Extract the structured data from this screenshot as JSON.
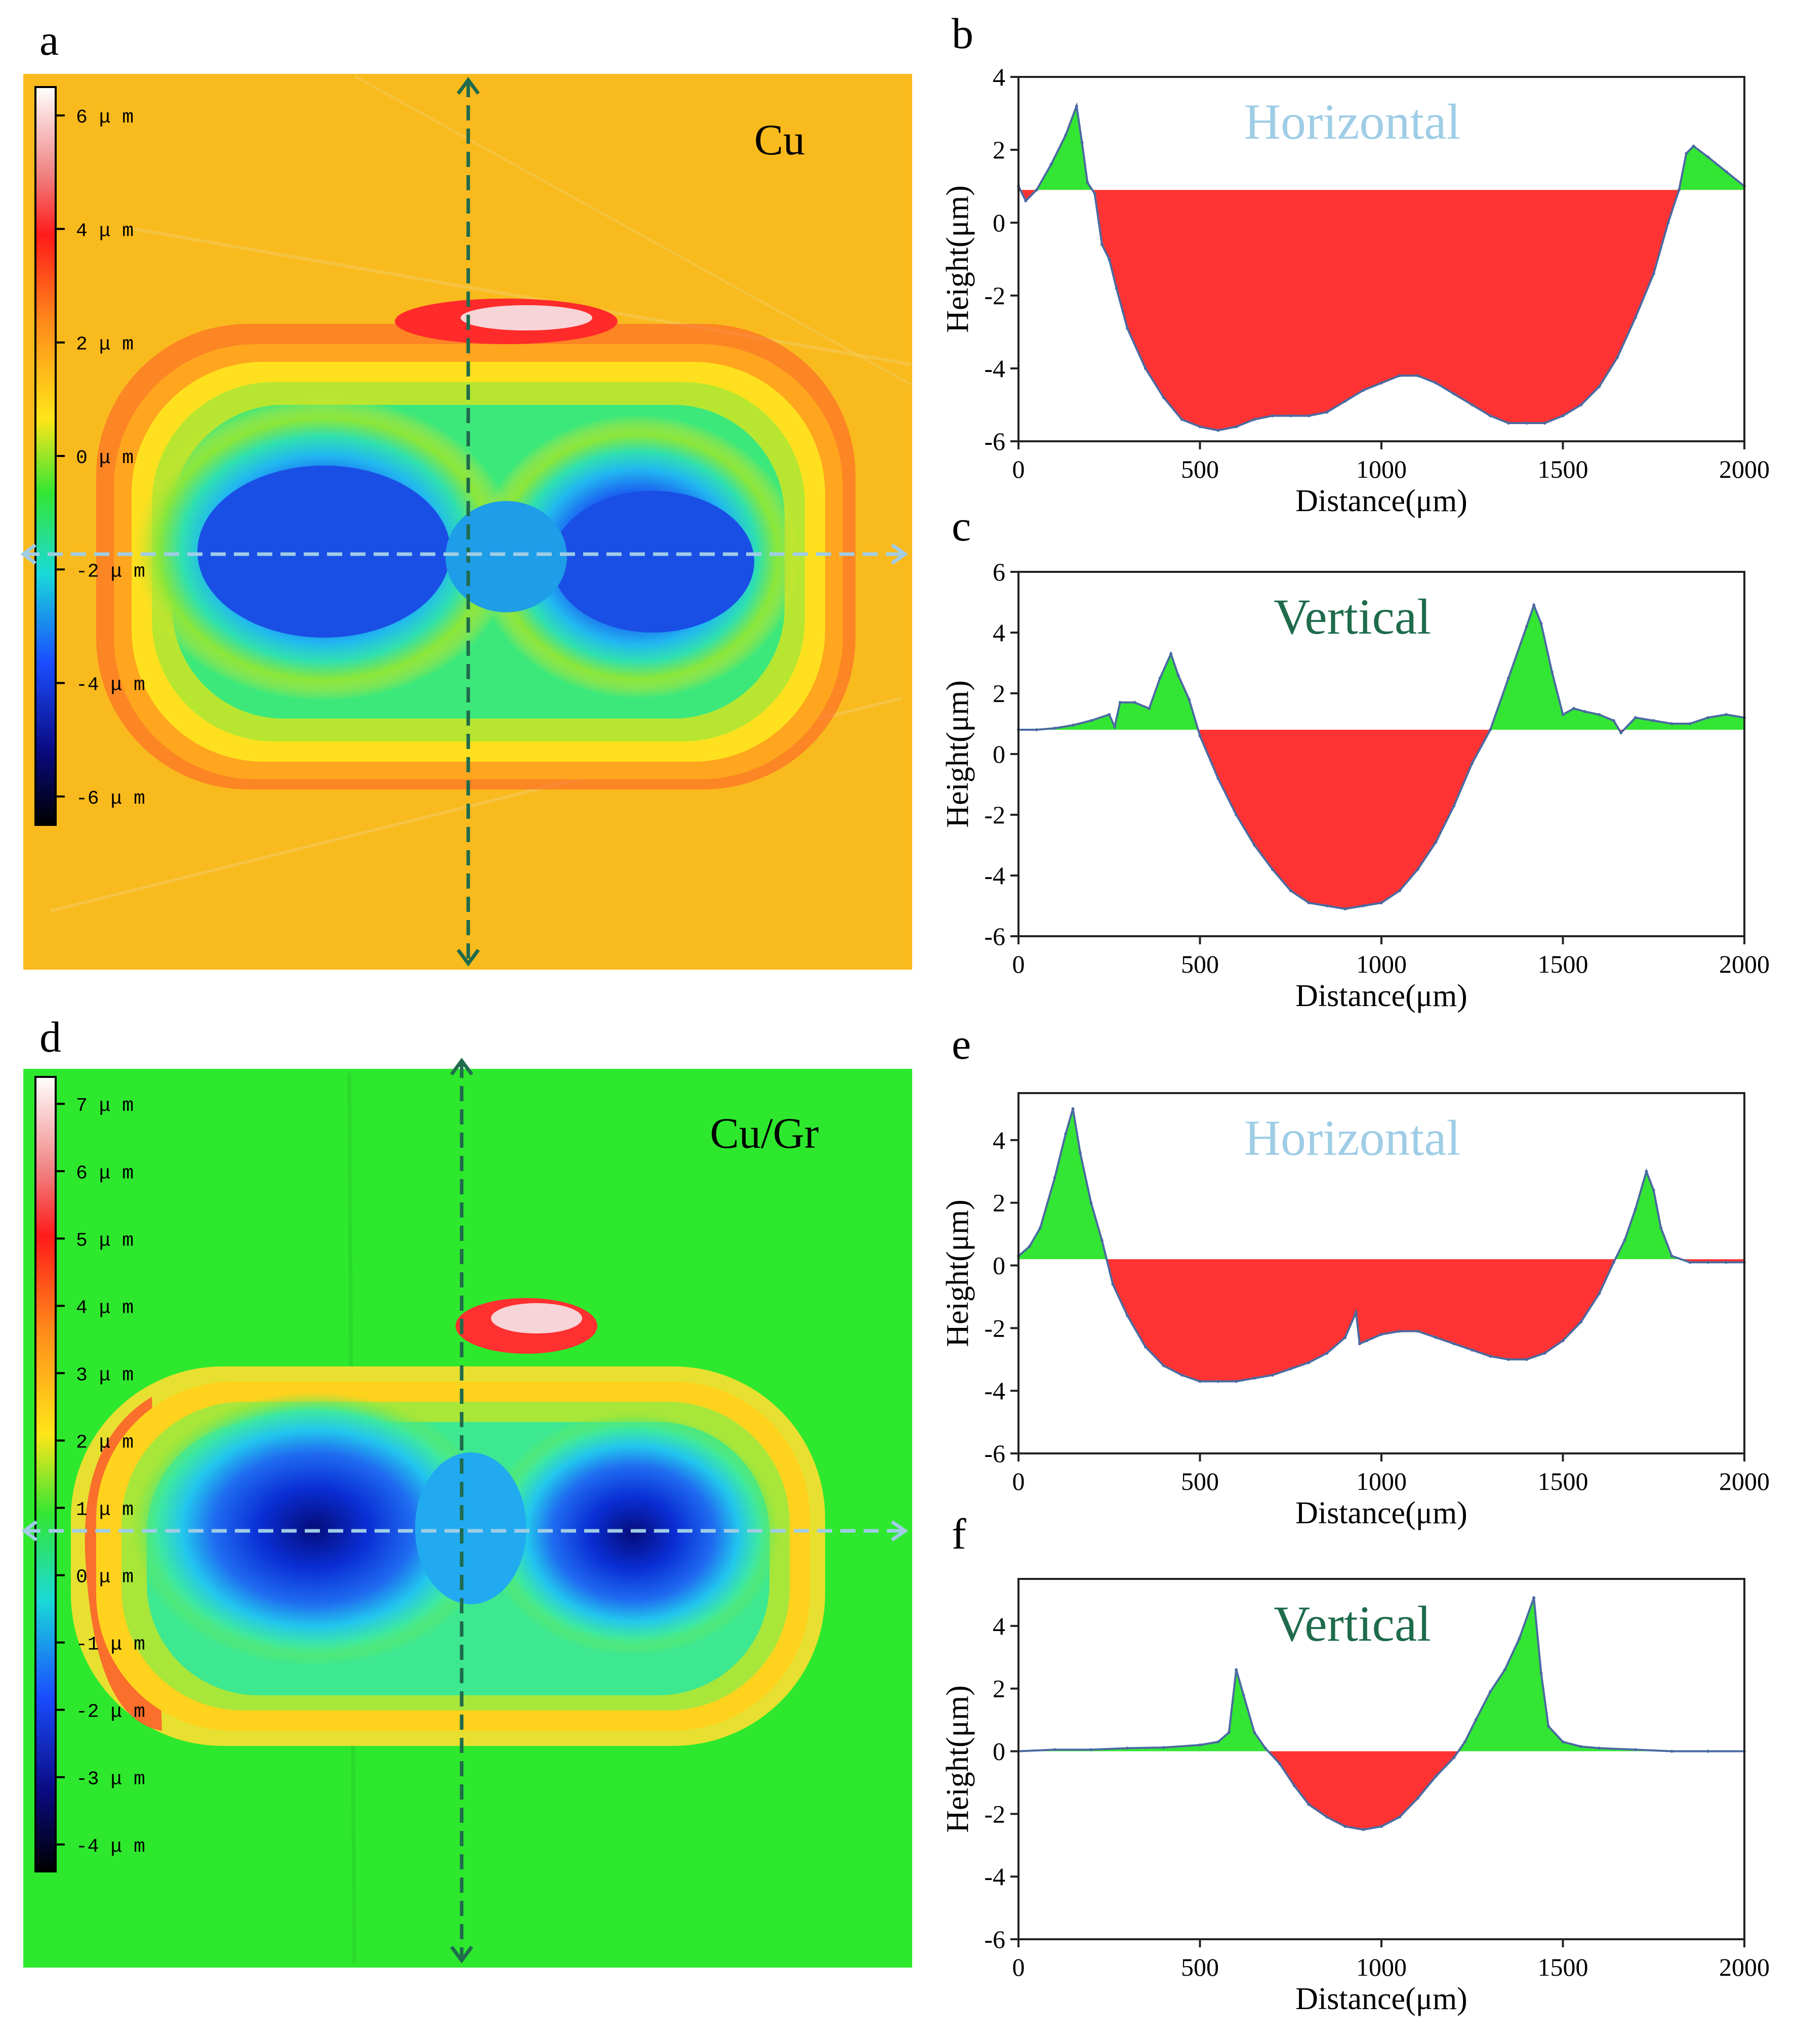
{
  "panel_labels": {
    "a": "a",
    "b": "b",
    "c": "c",
    "d": "d",
    "e": "e",
    "f": "f"
  },
  "maps": [
    {
      "id": "a",
      "material": "Cu",
      "colorbar_ticks": [
        "6 μ m",
        "4 μ m",
        "2 μ m",
        "0 μ m",
        "-2 μ m",
        "-4 μ m",
        "-6 μ m"
      ],
      "colorbar_range": [
        -6.5,
        6.5
      ],
      "background_color": "#f9ba1e"
    },
    {
      "id": "d",
      "material": "Cu/Gr",
      "colorbar_ticks": [
        "7 μ m",
        "6 μ m",
        "5 μ m",
        "4 μ m",
        "3 μ m",
        "2 μ m",
        "1 μ m",
        "0 μ m",
        "-1 μ m",
        "-2 μ m",
        "-3 μ m",
        "-4 μ m"
      ],
      "colorbar_range": [
        -4.4,
        7.4
      ],
      "background_color": "#2ee82e"
    }
  ],
  "colors": {
    "above_fill": "#33e633",
    "below_fill": "#ff3333",
    "profile_line": "#4a6aa0",
    "horizontal_line": "#9fcde6",
    "vertical_line": "#1f6b4c"
  },
  "chart_data": [
    {
      "id": "b",
      "type": "area",
      "title": "Horizontal",
      "xlabel": "Distance(μm)",
      "ylabel": "Height(μm)",
      "xlim": [
        0,
        2000
      ],
      "ylim": [
        -6,
        4
      ],
      "xticks": [
        "0",
        "500",
        "1000",
        "1500",
        "2000"
      ],
      "yticks": [
        "4",
        "2",
        "0",
        "-2",
        "-4",
        "-6"
      ],
      "baseline": 0.9,
      "series": [
        {
          "name": "profile",
          "x": [
            0,
            20,
            50,
            90,
            130,
            160,
            175,
            190,
            210,
            230,
            250,
            270,
            300,
            350,
            400,
            450,
            500,
            550,
            600,
            650,
            700,
            750,
            800,
            850,
            900,
            950,
            1000,
            1050,
            1100,
            1150,
            1200,
            1250,
            1300,
            1350,
            1400,
            1450,
            1500,
            1550,
            1600,
            1650,
            1700,
            1750,
            1790,
            1820,
            1840,
            1860,
            1900,
            1950,
            2000
          ],
          "y": [
            1.0,
            0.6,
            0.9,
            1.6,
            2.4,
            3.2,
            2.2,
            1.1,
            0.8,
            -0.6,
            -1.0,
            -1.8,
            -2.9,
            -4.0,
            -4.8,
            -5.4,
            -5.6,
            -5.7,
            -5.6,
            -5.4,
            -5.3,
            -5.3,
            -5.3,
            -5.2,
            -4.9,
            -4.6,
            -4.4,
            -4.2,
            -4.2,
            -4.4,
            -4.7,
            -5.0,
            -5.3,
            -5.5,
            -5.5,
            -5.5,
            -5.3,
            -5.0,
            -4.5,
            -3.7,
            -2.6,
            -1.4,
            0.0,
            0.9,
            1.9,
            2.1,
            1.8,
            1.4,
            1.0
          ]
        }
      ]
    },
    {
      "id": "c",
      "type": "area",
      "title": "Vertical",
      "xlabel": "Distance(μm)",
      "ylabel": "Height(μm)",
      "xlim": [
        0,
        2000
      ],
      "ylim": [
        -6,
        6
      ],
      "xticks": [
        "0",
        "500",
        "1000",
        "1500",
        "2000"
      ],
      "yticks": [
        "6",
        "4",
        "2",
        "0",
        "-2",
        "-4",
        "-6"
      ],
      "baseline": 0.8,
      "series": [
        {
          "name": "profile",
          "x": [
            0,
            50,
            100,
            150,
            200,
            250,
            265,
            280,
            320,
            360,
            390,
            420,
            440,
            470,
            500,
            550,
            600,
            650,
            700,
            750,
            800,
            850,
            900,
            950,
            1000,
            1050,
            1100,
            1150,
            1200,
            1250,
            1300,
            1350,
            1400,
            1420,
            1440,
            1470,
            1500,
            1530,
            1560,
            1600,
            1640,
            1660,
            1700,
            1750,
            1800,
            1850,
            1900,
            1950,
            2000
          ],
          "y": [
            0.8,
            0.8,
            0.85,
            0.95,
            1.1,
            1.3,
            0.9,
            1.7,
            1.7,
            1.5,
            2.5,
            3.3,
            2.6,
            1.8,
            0.6,
            -0.8,
            -2.0,
            -3.0,
            -3.8,
            -4.5,
            -4.9,
            -5.0,
            -5.1,
            -5.0,
            -4.9,
            -4.5,
            -3.8,
            -2.9,
            -1.7,
            -0.3,
            0.8,
            2.5,
            4.2,
            4.9,
            4.3,
            2.7,
            1.3,
            1.5,
            1.4,
            1.3,
            1.1,
            0.7,
            1.2,
            1.1,
            1.0,
            1.0,
            1.2,
            1.3,
            1.2
          ]
        }
      ]
    },
    {
      "id": "e",
      "type": "area",
      "title": "Horizontal",
      "xlabel": "Distance(μm)",
      "ylabel": "Height(μm)",
      "xlim": [
        0,
        2000
      ],
      "ylim": [
        -6,
        5.5
      ],
      "xticks": [
        "0",
        "500",
        "1000",
        "1500",
        "2000"
      ],
      "yticks": [
        "4",
        "2",
        "0",
        "-2",
        "-4",
        "-6"
      ],
      "baseline": 0.2,
      "series": [
        {
          "name": "profile",
          "x": [
            0,
            30,
            60,
            100,
            130,
            150,
            170,
            200,
            230,
            260,
            300,
            350,
            400,
            450,
            500,
            550,
            600,
            650,
            700,
            750,
            800,
            850,
            900,
            930,
            940,
            960,
            1000,
            1050,
            1100,
            1150,
            1200,
            1250,
            1300,
            1350,
            1400,
            1450,
            1500,
            1550,
            1600,
            1640,
            1670,
            1700,
            1730,
            1750,
            1770,
            1800,
            1850,
            1900,
            1950,
            2000
          ],
          "y": [
            0.3,
            0.6,
            1.2,
            2.8,
            4.2,
            5.0,
            3.6,
            2.0,
            0.8,
            -0.6,
            -1.6,
            -2.6,
            -3.2,
            -3.5,
            -3.7,
            -3.7,
            -3.7,
            -3.6,
            -3.5,
            -3.3,
            -3.1,
            -2.8,
            -2.3,
            -1.5,
            -2.5,
            -2.4,
            -2.2,
            -2.1,
            -2.1,
            -2.3,
            -2.5,
            -2.7,
            -2.9,
            -3.0,
            -3.0,
            -2.8,
            -2.4,
            -1.8,
            -0.9,
            0.1,
            0.8,
            1.8,
            3.0,
            2.4,
            1.2,
            0.3,
            0.1,
            0.1,
            0.1,
            0.1
          ]
        }
      ]
    },
    {
      "id": "f",
      "type": "area",
      "title": "Vertical",
      "xlabel": "Distance(μm)",
      "ylabel": "Height(μm)",
      "xlim": [
        0,
        2000
      ],
      "ylim": [
        -6,
        5.5
      ],
      "xticks": [
        "0",
        "500",
        "1000",
        "1500",
        "2000"
      ],
      "yticks": [
        "4",
        "2",
        "0",
        "-2",
        "-4",
        "-6"
      ],
      "baseline": 0.0,
      "series": [
        {
          "name": "profile",
          "x": [
            0,
            100,
            200,
            300,
            400,
            500,
            550,
            580,
            600,
            620,
            650,
            680,
            720,
            760,
            800,
            850,
            900,
            950,
            1000,
            1050,
            1100,
            1150,
            1200,
            1230,
            1260,
            1300,
            1340,
            1380,
            1420,
            1440,
            1460,
            1500,
            1550,
            1600,
            1700,
            1800,
            1900,
            2000
          ],
          "y": [
            0.0,
            0.05,
            0.05,
            0.1,
            0.12,
            0.2,
            0.3,
            0.6,
            2.6,
            1.8,
            0.6,
            0.1,
            -0.4,
            -1.1,
            -1.7,
            -2.1,
            -2.4,
            -2.5,
            -2.4,
            -2.1,
            -1.5,
            -0.8,
            -0.2,
            0.3,
            1.0,
            1.9,
            2.6,
            3.6,
            4.9,
            2.5,
            0.8,
            0.3,
            0.15,
            0.1,
            0.05,
            0.0,
            0.0,
            0.0
          ]
        }
      ]
    }
  ]
}
